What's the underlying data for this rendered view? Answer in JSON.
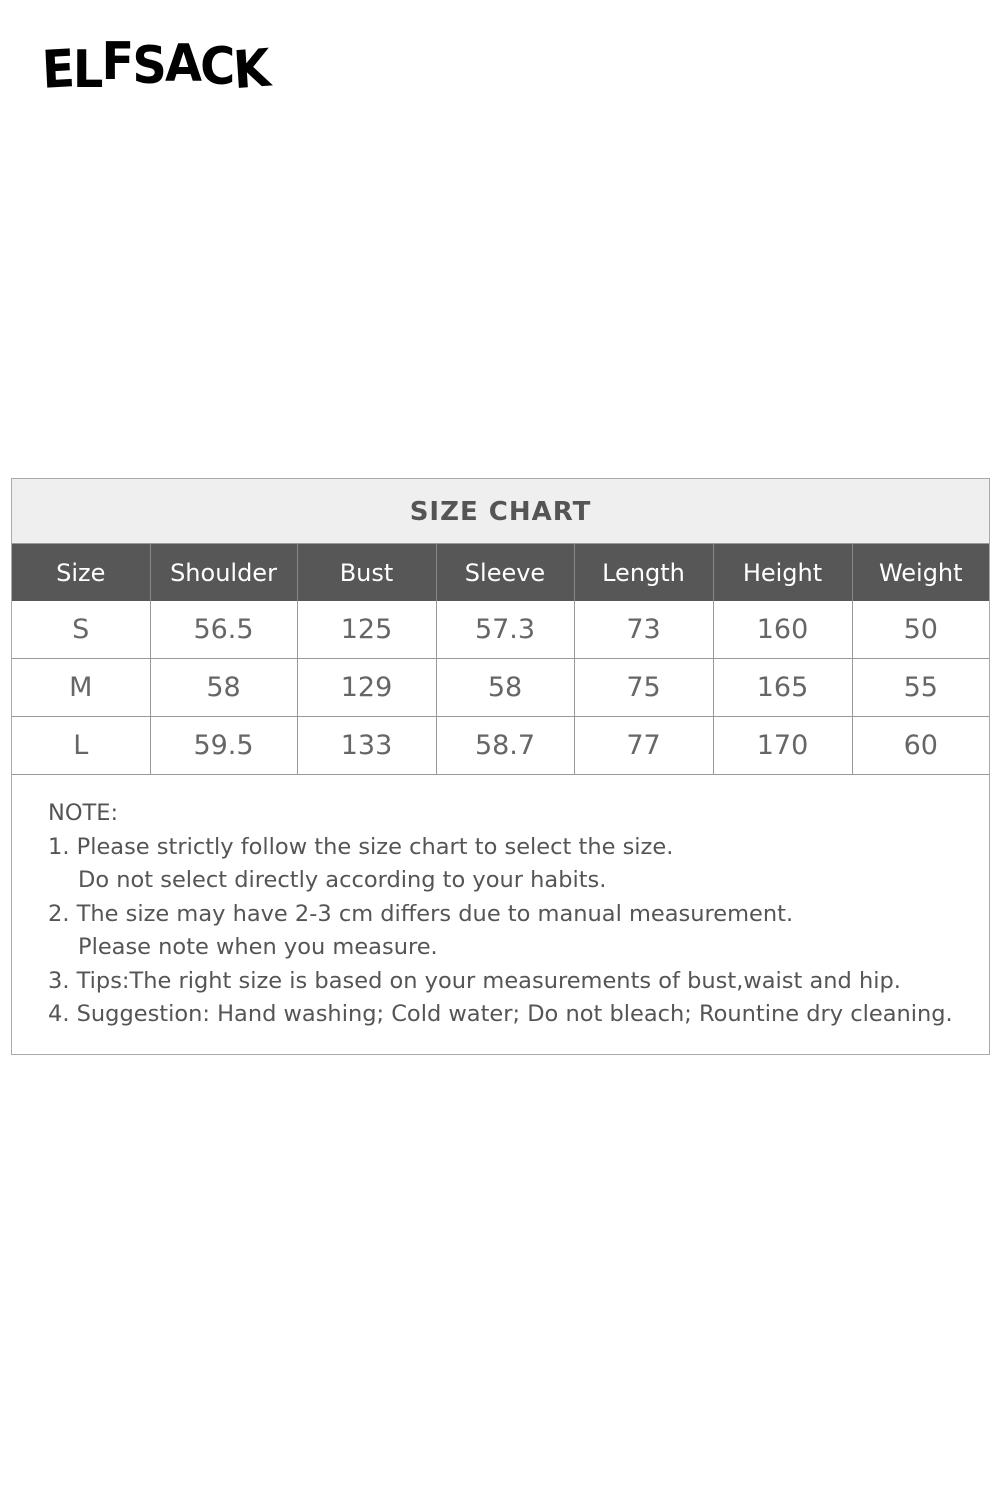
{
  "brand": {
    "logo_text": "ELFSACK"
  },
  "size_chart": {
    "title": "SIZE CHART",
    "columns": [
      "Size",
      "Shoulder",
      "Bust",
      "Sleeve",
      "Length",
      "Height",
      "Weight"
    ],
    "rows": [
      [
        "S",
        "56.5",
        "125",
        "57.3",
        "73",
        "160",
        "50"
      ],
      [
        "M",
        "58",
        "129",
        "58",
        "75",
        "165",
        "55"
      ],
      [
        "L",
        "59.5",
        "133",
        "58.7",
        "77",
        "170",
        "60"
      ]
    ]
  },
  "notes": {
    "heading": "NOTE:",
    "lines": [
      "1. Please strictly follow the size chart to select the size.",
      "Do not select directly according to your habits.",
      "2. The size may have 2-3 cm differs due to manual measurement.",
      "Please note when you measure.",
      "3. Tips:The right size is based on your measurements of bust,waist and hip.",
      "4. Suggestion: Hand washing; Cold water; Do not bleach; Rountine dry cleaning."
    ]
  },
  "colors": {
    "header_bg": "#575757",
    "title_bg": "#efefef",
    "text": "#555555"
  }
}
